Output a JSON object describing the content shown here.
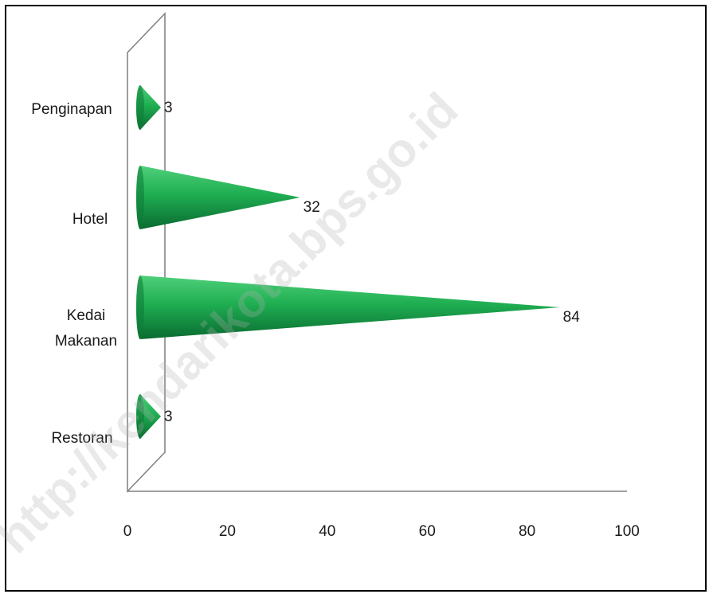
{
  "chart_data": {
    "type": "bar",
    "orientation": "horizontal",
    "mark_shape": "cone",
    "categories": [
      "Penginapan",
      "Hotel",
      "Kedai Makanan",
      "Restoran"
    ],
    "category_lines": [
      [
        "Penginapan"
      ],
      [
        "Hotel"
      ],
      [
        "Kedai",
        "Makanan"
      ],
      [
        "Restoran"
      ]
    ],
    "values": [
      3,
      32,
      84,
      3
    ],
    "value_labels": [
      "3",
      "32",
      "84",
      "3"
    ],
    "xlim": [
      0,
      100
    ],
    "xticks": [
      "0",
      "20",
      "40",
      "60",
      "80",
      "100"
    ],
    "title": "",
    "xlabel": "",
    "ylabel": "",
    "grid": false,
    "legend": "none",
    "colors": {
      "cone_dark": "#0a6b30",
      "cone_mid": "#1fae52",
      "cone_light": "#4fd07a"
    }
  },
  "watermark": "http://kendarikota.bps.go.id"
}
